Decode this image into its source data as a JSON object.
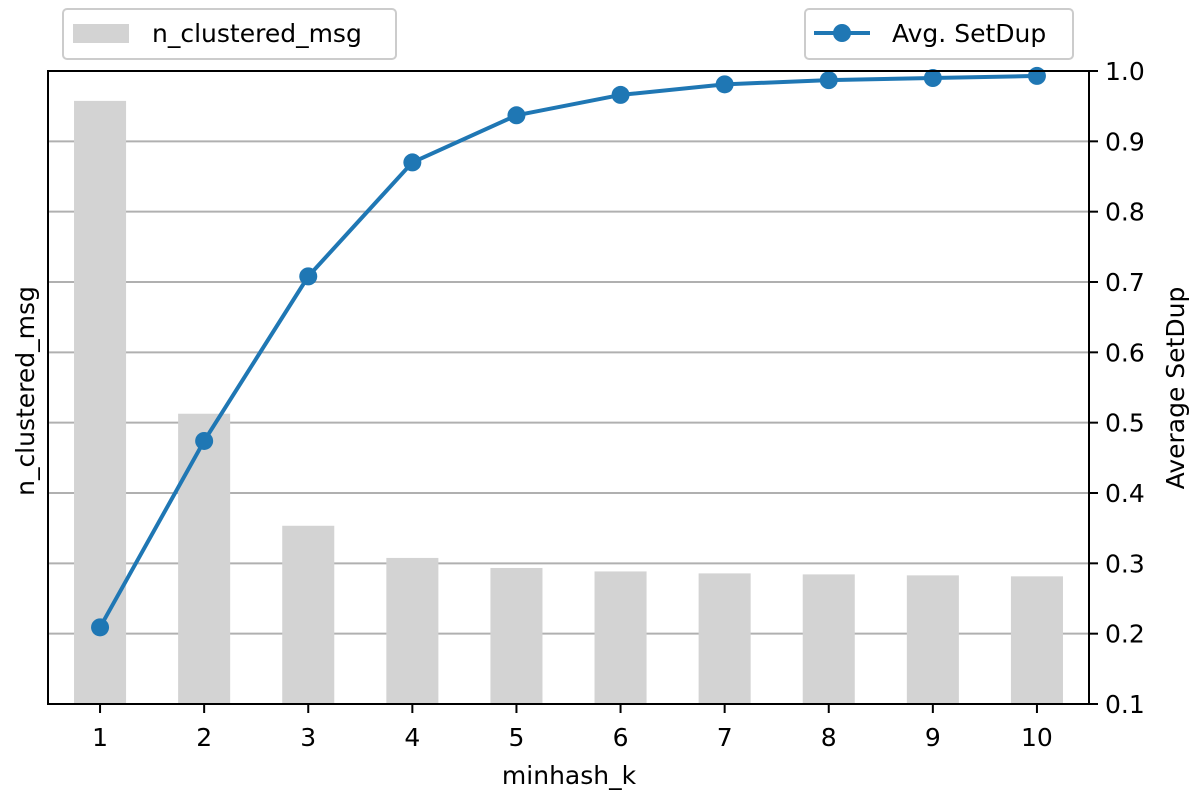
{
  "chart_data": {
    "type": "bar",
    "xlabel": "minhash_k",
    "ylabel_left": "n_clustered_msg",
    "ylabel_right": "Average SetDup",
    "categories": [
      "1",
      "2",
      "3",
      "4",
      "5",
      "6",
      "7",
      "8",
      "9",
      "10"
    ],
    "series": [
      {
        "name": "n_clustered_msg",
        "type": "bar",
        "axis": "left",
        "color": "#d3d3d3",
        "values": [
          0.9575,
          0.5127,
          0.3534,
          0.3077,
          0.2934,
          0.2885,
          0.2857,
          0.2843,
          0.2829,
          0.2815
        ]
      },
      {
        "name": "Avg. SetDup",
        "type": "line",
        "axis": "right",
        "color": "#1f77b4",
        "marker": "circle",
        "values": [
          0.209,
          0.474,
          0.708,
          0.87,
          0.937,
          0.966,
          0.981,
          0.987,
          0.99,
          0.993
        ]
      }
    ],
    "ylim_left": [
      0.1,
      1.0
    ],
    "ylim_right": [
      0.1,
      1.0
    ],
    "right_ticks": [
      "0.1",
      "0.2",
      "0.3",
      "0.4",
      "0.5",
      "0.6",
      "0.7",
      "0.8",
      "0.9",
      "1.0"
    ],
    "grid": true,
    "legends": [
      {
        "position": "top-left",
        "label": "n_clustered_msg",
        "kind": "bar"
      },
      {
        "position": "top-right",
        "label": "Avg. SetDup",
        "kind": "line"
      }
    ]
  }
}
